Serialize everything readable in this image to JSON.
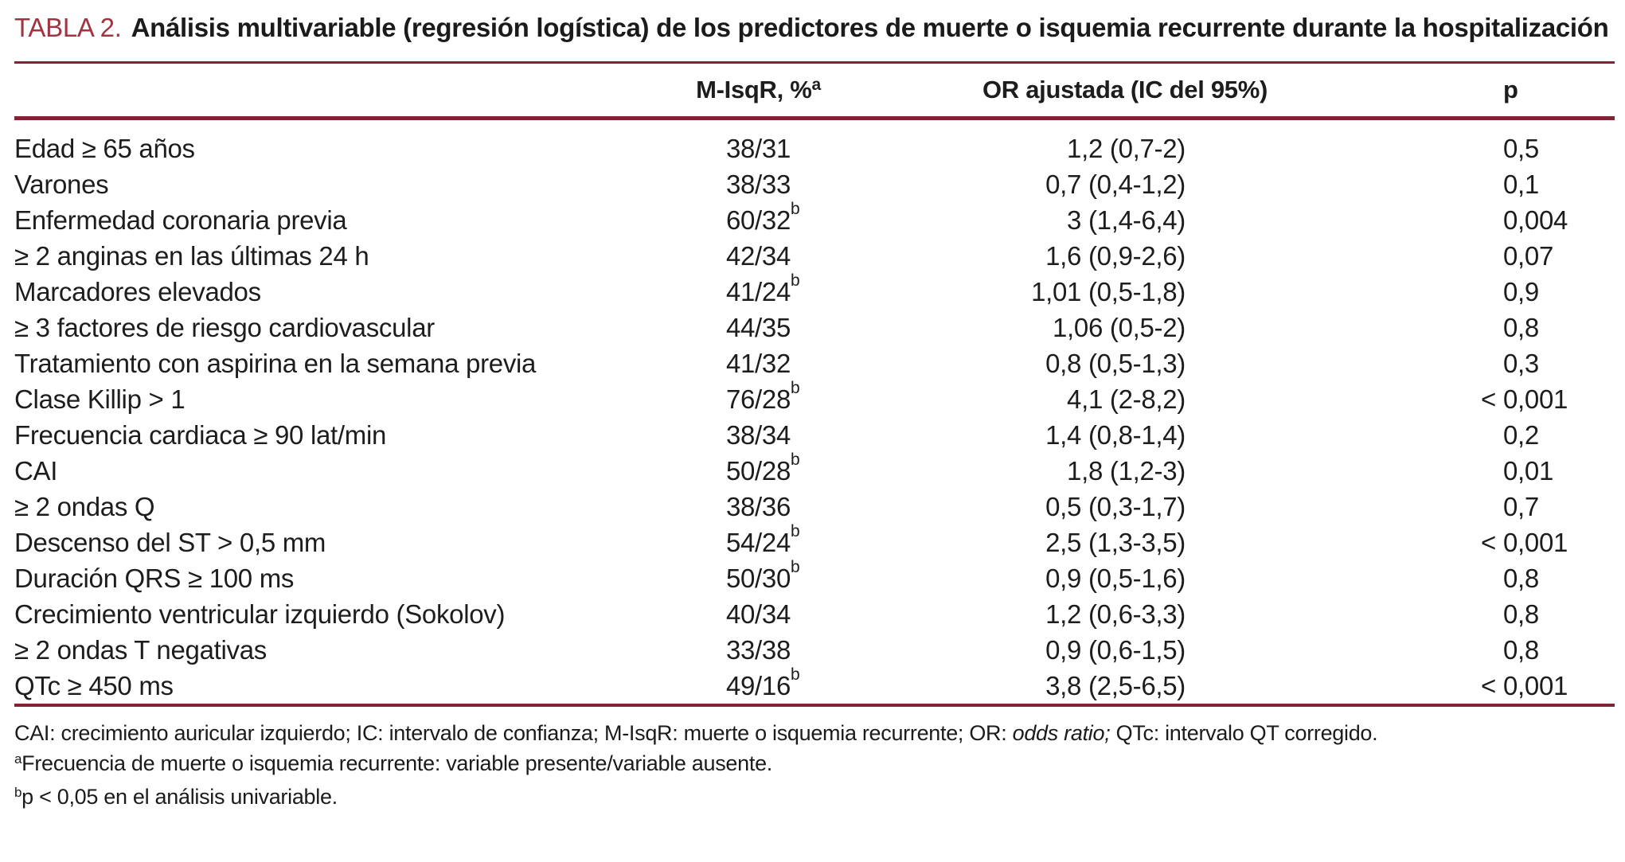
{
  "table": {
    "label": "TABLA 2.",
    "title": "Análisis multivariable (regresión logística) de los predictores de muerte o isquemia recurrente durante la hospitalización",
    "colors": {
      "accent_rule": "#7e2433",
      "table_label_red": "#a23441",
      "text": "#1d1d1d"
    },
    "columns": {
      "misqr": "M-IsqR, %",
      "misqr_sup": "a",
      "or": "OR ajustada (IC del 95%)",
      "p": "p"
    },
    "rows": [
      {
        "label": "Edad ≥ 65 años",
        "misqr": "38/31",
        "misqr_sup": "",
        "or": "1,2 (0,7-2)",
        "p_prefix": "",
        "p": "0,5"
      },
      {
        "label": "Varones",
        "misqr": "38/33",
        "misqr_sup": "",
        "or": "0,7 (0,4-1,2)",
        "p_prefix": "",
        "p": "0,1"
      },
      {
        "label": "Enfermedad coronaria previa",
        "misqr": "60/32",
        "misqr_sup": "b",
        "or": "3 (1,4-6,4)",
        "p_prefix": "",
        "p": "0,004"
      },
      {
        "label": "≥ 2 anginas en las últimas 24 h",
        "misqr": "42/34",
        "misqr_sup": "",
        "or": "1,6 (0,9-2,6)",
        "p_prefix": "",
        "p": "0,07"
      },
      {
        "label": "Marcadores elevados",
        "misqr": "41/24",
        "misqr_sup": "b",
        "or": "1,01 (0,5-1,8)",
        "p_prefix": "",
        "p": "0,9"
      },
      {
        "label": "≥ 3 factores de riesgo cardiovascular",
        "misqr": "44/35",
        "misqr_sup": "",
        "or": "1,06 (0,5-2)",
        "p_prefix": "",
        "p": "0,8"
      },
      {
        "label": "Tratamiento con aspirina en la semana previa",
        "misqr": "41/32",
        "misqr_sup": "",
        "or": "0,8 (0,5-1,3)",
        "p_prefix": "",
        "p": "0,3"
      },
      {
        "label": "Clase Killip > 1",
        "misqr": "76/28",
        "misqr_sup": "b",
        "or": "4,1 (2-8,2)",
        "p_prefix": "<",
        "p": "0,001"
      },
      {
        "label": "Frecuencia cardiaca ≥ 90 lat/min",
        "misqr": "38/34",
        "misqr_sup": "",
        "or": "1,4 (0,8-1,4)",
        "p_prefix": "",
        "p": "0,2"
      },
      {
        "label": "CAI",
        "misqr": "50/28",
        "misqr_sup": "b",
        "or": "1,8 (1,2-3)",
        "p_prefix": "",
        "p": "0,01"
      },
      {
        "label": "≥ 2 ondas Q",
        "misqr": "38/36",
        "misqr_sup": "",
        "or": "0,5 (0,3-1,7)",
        "p_prefix": "",
        "p": "0,7"
      },
      {
        "label": "Descenso del ST > 0,5 mm",
        "misqr": "54/24",
        "misqr_sup": "b",
        "or": "2,5 (1,3-3,5)",
        "p_prefix": "<",
        "p": "0,001"
      },
      {
        "label": "Duración QRS ≥ 100 ms",
        "misqr": "50/30",
        "misqr_sup": "b",
        "or": "0,9 (0,5-1,6)",
        "p_prefix": "",
        "p": "0,8"
      },
      {
        "label": "Crecimiento ventricular izquierdo (Sokolov)",
        "misqr": "40/34",
        "misqr_sup": "",
        "or": "1,2 (0,6-3,3)",
        "p_prefix": "",
        "p": "0,8"
      },
      {
        "label": "≥ 2 ondas T negativas",
        "misqr": "33/38",
        "misqr_sup": "",
        "or": "0,9 (0,6-1,5)",
        "p_prefix": "",
        "p": "0,8"
      },
      {
        "label": "QTc ≥ 450 ms",
        "misqr": "49/16",
        "misqr_sup": "b",
        "or": "3,8 (2,5-6,5)",
        "p_prefix": "<",
        "p": "0,001"
      }
    ],
    "footnotes": {
      "abbrev_pre": "CAI: crecimiento auricular izquierdo; IC: intervalo de confianza; M-IsqR: muerte o isquemia recurrente; OR: ",
      "abbrev_italic": "odds ratio;",
      "abbrev_post": " QTc: intervalo QT corregido.",
      "note_a_sup": "a",
      "note_a": "Frecuencia de muerte o isquemia recurrente: variable presente/variable ausente.",
      "note_b_sup": "b",
      "note_b": "p < 0,05 en el análisis univariable."
    }
  }
}
